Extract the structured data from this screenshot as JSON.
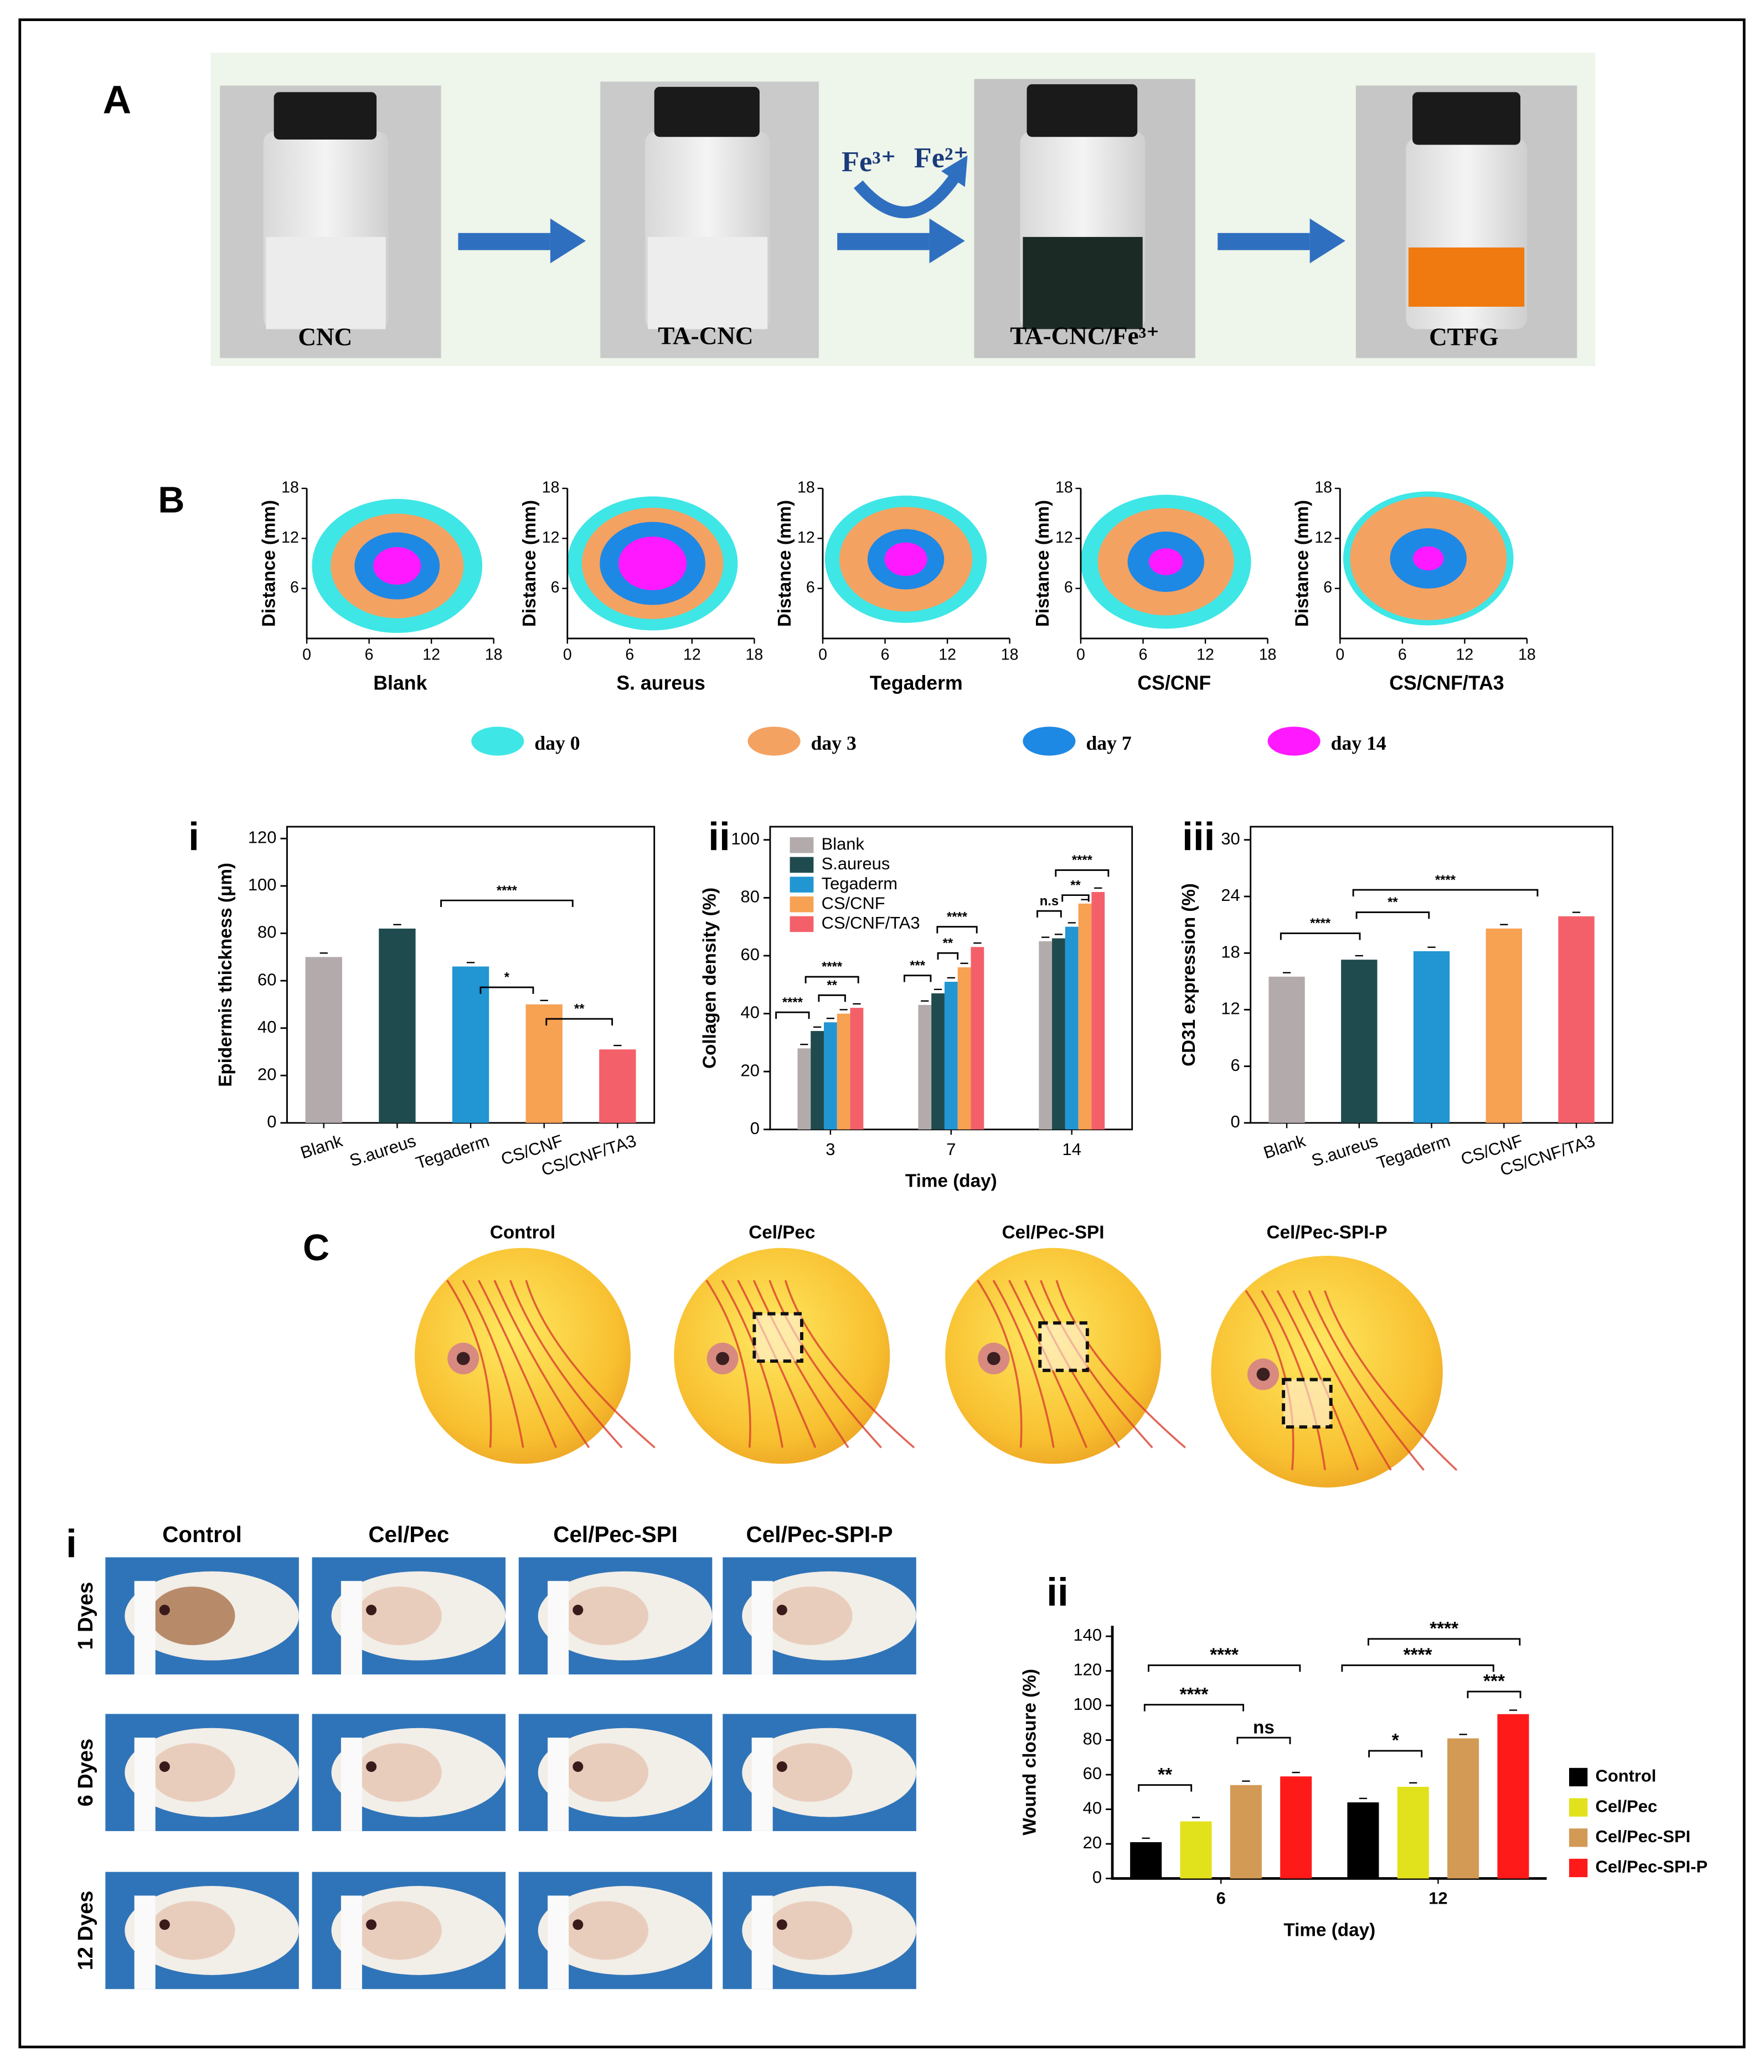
{
  "panel_a": {
    "label": "A",
    "reagent_in": "Fe³⁺",
    "reagent_out": "Fe²⁺",
    "samples": [
      "CNC",
      "TA-CNC",
      "TA-CNC/Fe³⁺",
      "CTFG"
    ]
  },
  "panel_b": {
    "label": "B",
    "axis_label": "Distance (mm)",
    "xlim": [
      0,
      18
    ],
    "ylim": [
      0,
      18
    ],
    "xticks": [
      0,
      6,
      12,
      18
    ],
    "yticks": [
      6,
      12,
      18
    ],
    "plots": [
      "Blank",
      "S. aureus",
      "Tegaderm",
      "CS/CNF",
      "CS/CNF/TA3"
    ],
    "legend": [
      {
        "name": "day 0",
        "color": "#3fe6e6"
      },
      {
        "name": "day 3",
        "color": "#f4a261"
      },
      {
        "name": "day 7",
        "color": "#1e88e5"
      },
      {
        "name": "day 14",
        "color": "#ff19ff"
      }
    ]
  },
  "charts": [
    {
      "type": "bar",
      "label": "i",
      "ylabel": "Epidermis thickness (μm)",
      "categories": [
        "Blank",
        "S.aureus",
        "Tegaderm",
        "CS/CNF",
        "CS/CNF/TA3"
      ],
      "values": [
        70,
        82,
        66,
        50,
        31
      ],
      "colors": [
        "#b3abab",
        "#1f4b4f",
        "#2196d3",
        "#f7a153",
        "#f4606a"
      ],
      "ylim": [
        0,
        120
      ],
      "yticks": [
        0,
        20,
        40,
        60,
        80,
        100,
        120
      ],
      "annotations": [
        "****",
        "*",
        "**"
      ]
    },
    {
      "type": "grouped_bar",
      "label": "ii",
      "ylabel": "Collagen density (%)",
      "xlabel": "Time (day)",
      "categories": [
        "3",
        "7",
        "14"
      ],
      "ylim": [
        0,
        100
      ],
      "yticks": [
        0,
        20,
        40,
        60,
        80,
        100
      ],
      "series": [
        {
          "name": "Blank",
          "color": "#b3abab",
          "values": [
            28,
            43,
            65
          ]
        },
        {
          "name": "S.aureus",
          "color": "#1f4b4f",
          "values": [
            34,
            47,
            66
          ]
        },
        {
          "name": "Tegaderm",
          "color": "#2196d3",
          "values": [
            37,
            51,
            70
          ]
        },
        {
          "name": "CS/CNF",
          "color": "#f7a153",
          "values": [
            40,
            56,
            78
          ]
        },
        {
          "name": "CS/CNF/TA3",
          "color": "#f4606a",
          "values": [
            42,
            63,
            82
          ]
        }
      ],
      "annotations": [
        "****",
        "**",
        "****",
        "***",
        "**",
        "****",
        "n.s",
        "**",
        "****"
      ]
    },
    {
      "type": "bar",
      "label": "iii",
      "ylabel": "CD31 expression (%)",
      "categories": [
        "Blank",
        "S.aureus",
        "Tegaderm",
        "CS/CNF",
        "CS/CNF/TA3"
      ],
      "values": [
        15.5,
        17.3,
        18.2,
        20.6,
        21.9
      ],
      "colors": [
        "#b3abab",
        "#1f4b4f",
        "#2196d3",
        "#f7a153",
        "#f4606a"
      ],
      "ylim": [
        0,
        30
      ],
      "yticks": [
        0,
        6,
        12,
        18,
        24,
        30
      ],
      "annotations": [
        "****",
        "**",
        "****"
      ]
    },
    {
      "type": "grouped_bar",
      "label": "ii",
      "ylabel": "Wound closure (%)",
      "xlabel": "Time (day)",
      "categories": [
        "6",
        "12"
      ],
      "ylim": [
        0,
        140
      ],
      "yticks": [
        0,
        20,
        40,
        60,
        80,
        100,
        120,
        140
      ],
      "series": [
        {
          "name": "Control",
          "color": "#000000",
          "values": [
            21,
            44
          ]
        },
        {
          "name": "Cel/Pec",
          "color": "#e2e21c",
          "values": [
            33,
            53
          ]
        },
        {
          "name": "Cel/Pec-SPI",
          "color": "#d39a55",
          "values": [
            54,
            81
          ]
        },
        {
          "name": "Cel/Pec-SPI-P",
          "color": "#ff1a1a",
          "values": [
            59,
            95
          ]
        }
      ],
      "annotations": [
        "**",
        "****",
        "****",
        "ns",
        "*",
        "****",
        "****",
        "***"
      ]
    }
  ],
  "panel_c": {
    "label": "C",
    "samples": [
      "Control",
      "Cel/Pec",
      "Cel/Pec-SPI",
      "Cel/Pec-SPI-P"
    ]
  },
  "panel_d": {
    "label": "i",
    "columns": [
      "Control",
      "Cel/Pec",
      "Cel/Pec-SPI",
      "Cel/Pec-SPI-P"
    ],
    "rows": [
      "1 Dyes",
      "6 Dyes",
      "12 Dyes"
    ]
  }
}
